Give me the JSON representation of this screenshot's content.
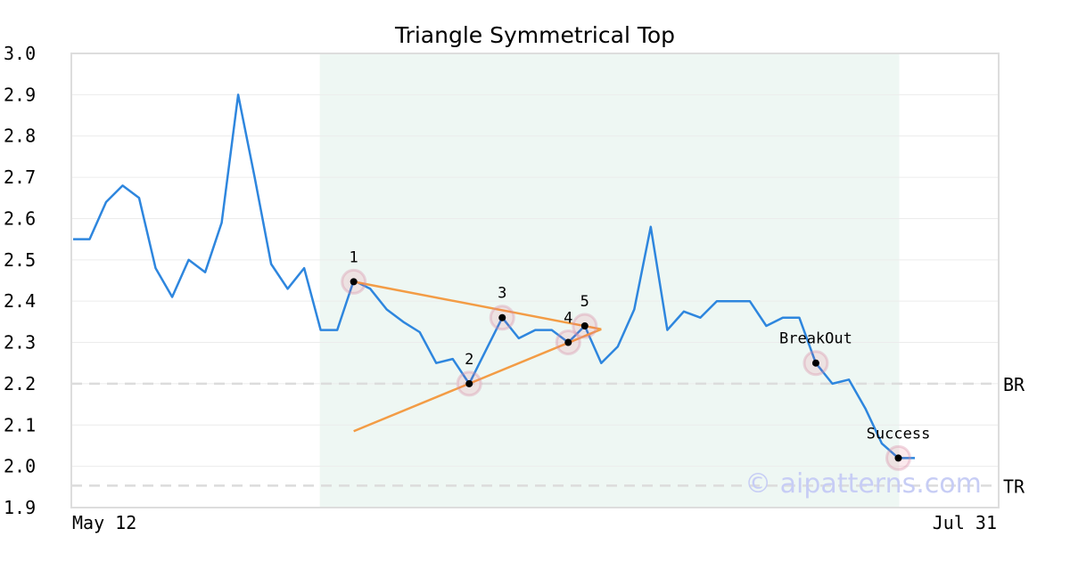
{
  "chart_data": {
    "type": "line",
    "title": "Triangle Symmetrical Top",
    "xlabel": "",
    "ylabel": "",
    "x_tick_labels": [
      "May 12",
      "Jul 31"
    ],
    "ylim": [
      1.9,
      3.0
    ],
    "y_ticks": [
      "1.9",
      "2.0",
      "2.1",
      "2.2",
      "2.3",
      "2.4",
      "2.5",
      "2.6",
      "2.7",
      "2.8",
      "2.9",
      "3.0"
    ],
    "grid": "horizontal",
    "series": [
      {
        "color": "#2e86de",
        "values": [
          2.55,
          2.55,
          2.64,
          2.68,
          2.65,
          2.48,
          2.41,
          2.5,
          2.47,
          2.59,
          2.9,
          2.7,
          2.49,
          2.43,
          2.48,
          2.33,
          2.33,
          2.45,
          2.43,
          2.38,
          2.35,
          2.325,
          2.25,
          2.26,
          2.2,
          2.28,
          2.36,
          2.31,
          2.33,
          2.33,
          2.3,
          2.34,
          2.25,
          2.29,
          2.38,
          2.58,
          2.33,
          2.375,
          2.36,
          2.4,
          2.4,
          2.4,
          2.34,
          2.36,
          2.36,
          2.25,
          2.2,
          2.21,
          2.14,
          2.055,
          2.02,
          2.02
        ]
      }
    ],
    "pattern_region": {
      "start_index": 15,
      "end_index": 50,
      "color": "#eef7f3"
    },
    "trend_lines": [
      {
        "from": [
          17,
          2.447
        ],
        "to": [
          32,
          2.332
        ],
        "color": "#f39c45"
      },
      {
        "from": [
          17,
          2.085
        ],
        "to": [
          32,
          2.332
        ],
        "color": "#f39c45"
      }
    ],
    "points": [
      {
        "label": "1",
        "index": 17,
        "value": 2.447
      },
      {
        "label": "2",
        "index": 24,
        "value": 2.2
      },
      {
        "label": "3",
        "index": 26,
        "value": 2.36
      },
      {
        "label": "4",
        "index": 30,
        "value": 2.3
      },
      {
        "label": "5",
        "index": 31,
        "value": 2.34
      },
      {
        "label": "BreakOut",
        "index": 45,
        "value": 2.25
      },
      {
        "label": "Success",
        "index": 50,
        "value": 2.02
      }
    ],
    "levels": [
      {
        "label": "BR",
        "value": 2.2
      },
      {
        "label": "TR",
        "value": 1.953
      }
    ],
    "watermark": "© aipatterns.com"
  }
}
